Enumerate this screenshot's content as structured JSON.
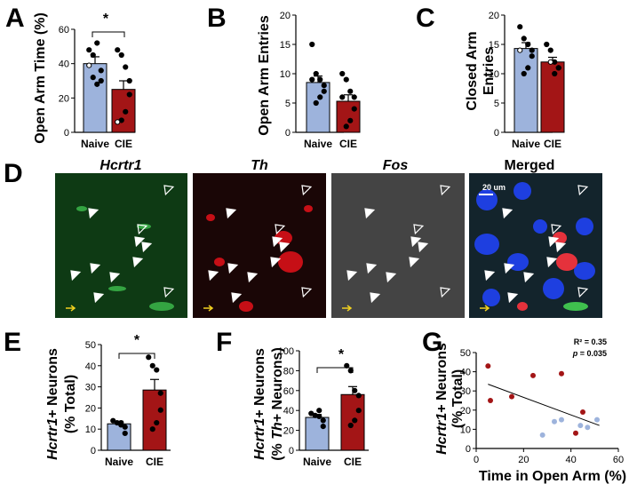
{
  "colors": {
    "naive": "#9db3dc",
    "cie": "#a31516",
    "err": "#000000",
    "green": "#0e3a14",
    "red": "#1a0606",
    "gray": "#4a4a4a",
    "merged": "#13242c"
  },
  "panels": {
    "A": {
      "label": "A",
      "ylabel": "Open Arm Time (%)",
      "star": "*"
    },
    "B": {
      "label": "B",
      "ylabel": "Open Arm Entries"
    },
    "C": {
      "label": "C",
      "ylabel1": "Closed Arm",
      "ylabel2": "Entries"
    },
    "D": {
      "label": "D",
      "titles": [
        "Hcrtr1",
        "Th",
        "Fos",
        "Merged"
      ],
      "scalebar": "20 um"
    },
    "E": {
      "label": "E",
      "ylabel_italic": "Hcrtr1",
      "ylabel_rest": "+ Neurons",
      "ylabel2": "(% Total)",
      "star": "*"
    },
    "F": {
      "label": "F",
      "ylabel_italic": "Hcrtr1",
      "ylabel_rest": "+ Neurons",
      "ylabel2_pre": "(% ",
      "ylabel2_italic": "Th",
      "ylabel2_post": "+ Neurons)",
      "star": "*"
    },
    "G": {
      "label": "G",
      "ylabel_italic": "Hcrtr1",
      "ylabel_rest": "+ Neurons",
      "ylabel2": "(% Total)",
      "xlabel": "Time in Open Arm (%)",
      "r2": "R² = 0.35",
      "p_italic": "p",
      "p_rest": " = 0.035"
    }
  },
  "chart_data": [
    {
      "id": "A",
      "type": "bar",
      "categories": [
        "Naive",
        "CIE"
      ],
      "values": [
        40,
        25
      ],
      "errors": [
        4,
        5
      ],
      "ylim": [
        0,
        60
      ],
      "yticks": [
        0,
        20,
        40,
        60
      ],
      "ylabel": "Open Arm Time (%)",
      "points": [
        [
          48,
          45,
          52,
          36,
          30,
          28,
          32,
          39
        ],
        [
          48,
          45,
          38,
          30,
          22,
          12,
          7,
          6
        ]
      ]
    },
    {
      "id": "B",
      "type": "bar",
      "categories": [
        "Naive",
        "CIE"
      ],
      "values": [
        8.5,
        5.3
      ],
      "errors": [
        1.1,
        1.1
      ],
      "ylim": [
        0,
        20
      ],
      "yticks": [
        0,
        5,
        10,
        15,
        20
      ],
      "ylabel": "Open Arm Entries",
      "points": [
        [
          15,
          10,
          9,
          8,
          7,
          6,
          5,
          9
        ],
        [
          10,
          9,
          7,
          6,
          4,
          2,
          1,
          6
        ]
      ]
    },
    {
      "id": "C",
      "type": "bar",
      "categories": [
        "Naive",
        "CIE"
      ],
      "values": [
        14.3,
        12
      ],
      "errors": [
        1,
        0.8
      ],
      "ylim": [
        0,
        20
      ],
      "yticks": [
        0,
        5,
        10,
        15,
        20
      ],
      "ylabel": "Closed Arm Entries",
      "points": [
        [
          18,
          16,
          15,
          14,
          13,
          11,
          10,
          14
        ],
        [
          15,
          14,
          12,
          11,
          11,
          10,
          12
        ]
      ]
    },
    {
      "id": "E",
      "type": "bar",
      "categories": [
        "Naive",
        "CIE"
      ],
      "values": [
        12.5,
        28.5
      ],
      "errors": [
        1.2,
        5
      ],
      "ylim": [
        0,
        50
      ],
      "yticks": [
        0,
        10,
        20,
        30,
        40,
        50
      ],
      "ylabel": "Hcrtr1+ Neurons (% Total)",
      "points": [
        [
          14,
          13,
          12,
          11,
          8,
          13
        ],
        [
          44,
          40,
          38,
          27,
          19,
          13,
          10
        ]
      ]
    },
    {
      "id": "F",
      "type": "bar",
      "categories": [
        "Naive",
        "CIE"
      ],
      "values": [
        33,
        56
      ],
      "errors": [
        3,
        8
      ],
      "ylim": [
        0,
        100
      ],
      "yticks": [
        0,
        20,
        40,
        60,
        80,
        100
      ],
      "ylabel": "Hcrtr1+ Neurons (% Th+ Neurons)",
      "points": [
        [
          37,
          35,
          34,
          30,
          24,
          40
        ],
        [
          85,
          80,
          60,
          55,
          40,
          30,
          25
        ]
      ]
    },
    {
      "id": "G",
      "type": "scatter",
      "xlim": [
        0,
        60
      ],
      "ylim": [
        0,
        50
      ],
      "xticks": [
        0,
        20,
        40,
        60
      ],
      "yticks": [
        0,
        10,
        20,
        30,
        40,
        50
      ],
      "xlabel": "Time in Open Arm (%)",
      "ylabel": "Hcrtr1+ Neurons (% Total)",
      "series": [
        {
          "name": "Naive",
          "x": [
            28,
            33,
            36,
            44,
            47,
            51
          ],
          "y": [
            7,
            14,
            15,
            12,
            11,
            15
          ]
        },
        {
          "name": "CIE",
          "x": [
            5,
            6,
            15,
            24,
            36,
            42,
            45
          ],
          "y": [
            43,
            25,
            27,
            38,
            39,
            8,
            19
          ]
        }
      ],
      "fit": {
        "x": [
          5,
          52
        ],
        "y": [
          33.5,
          12
        ]
      },
      "r2": "R² = 0.35",
      "p": "p = 0.035"
    }
  ]
}
